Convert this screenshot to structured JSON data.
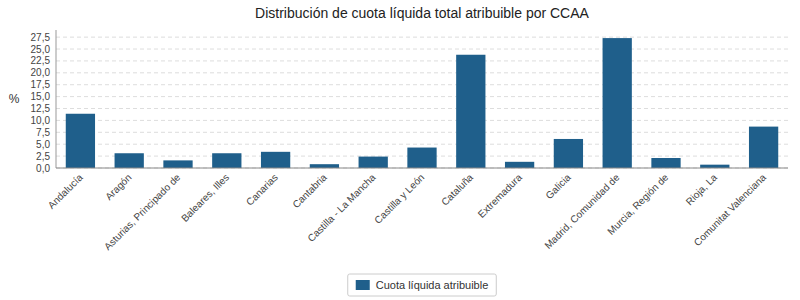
{
  "chart_data": {
    "type": "bar",
    "title": "Distribución de cuota líquida total atribuible por CCAA",
    "categories": [
      "Andalucía",
      "Aragón",
      "Asturias, Principado de",
      "Baleares, Illes",
      "Canarias",
      "Cantabria",
      "Castilla - La Mancha",
      "Castilla y León",
      "Cataluña",
      "Extremadura",
      "Galicia",
      "Madrid, Comunidad de",
      "Murcia, Región de",
      "Rioja, La",
      "Comunitat Valenciana"
    ],
    "series": [
      {
        "name": "Cuota líquida atribuible",
        "color": "#1f5f8b",
        "values": [
          11.4,
          3.1,
          1.6,
          3.1,
          3.4,
          0.8,
          2.4,
          4.3,
          23.8,
          1.3,
          6.1,
          27.3,
          2.1,
          0.7,
          8.7
        ]
      }
    ],
    "ylabel": "%",
    "ylim": [
      0,
      29
    ],
    "yticks": [
      {
        "value": 0.0,
        "label": "0,0"
      },
      {
        "value": 2.5,
        "label": "2,5"
      },
      {
        "value": 5.0,
        "label": "5,0"
      },
      {
        "value": 7.5,
        "label": "7,5"
      },
      {
        "value": 10.0,
        "label": "10,0"
      },
      {
        "value": 12.5,
        "label": "12,5"
      },
      {
        "value": 15.0,
        "label": "15,0"
      },
      {
        "value": 17.5,
        "label": "17,5"
      },
      {
        "value": 20.0,
        "label": "20,0"
      },
      {
        "value": 22.5,
        "label": "22,5"
      },
      {
        "value": 25.0,
        "label": "25,0"
      },
      {
        "value": 27.5,
        "label": "27,5"
      }
    ],
    "grid": true,
    "legend": "bottom"
  }
}
